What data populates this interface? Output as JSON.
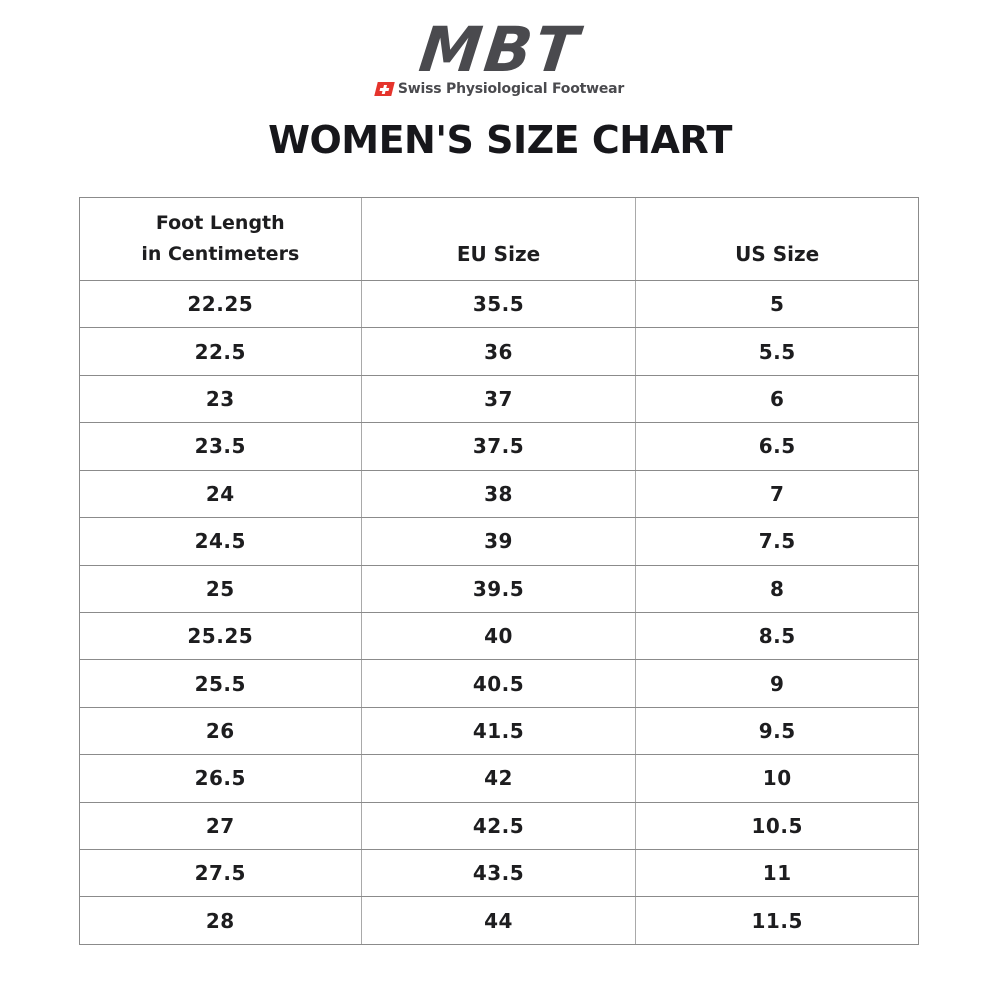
{
  "logo": {
    "brand": "MBT",
    "tagline": "Swiss Physiological Footwear",
    "brand_color": "#4a4a4e",
    "flag_color": "#e5342c"
  },
  "title": "WOMEN'S SIZE CHART",
  "table": {
    "border_color": "#8b8b8b",
    "header": {
      "foot_length_line1": "Foot Length",
      "foot_length_line2": "in Centimeters",
      "eu_size": "EU Size",
      "us_size": "US Size"
    },
    "rows": [
      [
        "22.25",
        "35.5",
        "5"
      ],
      [
        "22.5",
        "36",
        "5.5"
      ],
      [
        "23",
        "37",
        "6"
      ],
      [
        "23.5",
        "37.5",
        "6.5"
      ],
      [
        "24",
        "38",
        "7"
      ],
      [
        "24.5",
        "39",
        "7.5"
      ],
      [
        "25",
        "39.5",
        "8"
      ],
      [
        "25.25",
        "40",
        "8.5"
      ],
      [
        "25.5",
        "40.5",
        "9"
      ],
      [
        "26",
        "41.5",
        "9.5"
      ],
      [
        "26.5",
        "42",
        "10"
      ],
      [
        "27",
        "42.5",
        "10.5"
      ],
      [
        "27.5",
        "43.5",
        "11"
      ],
      [
        "28",
        "44",
        "11.5"
      ]
    ]
  },
  "chart_data": {
    "type": "table",
    "title": "WOMEN'S SIZE CHART",
    "columns": [
      "Foot Length in Centimeters",
      "EU Size",
      "US Size"
    ],
    "rows": [
      [
        22.25,
        35.5,
        5
      ],
      [
        22.5,
        36,
        5.5
      ],
      [
        23,
        37,
        6
      ],
      [
        23.5,
        37.5,
        6.5
      ],
      [
        24,
        38,
        7
      ],
      [
        24.5,
        39,
        7.5
      ],
      [
        25,
        39.5,
        8
      ],
      [
        25.25,
        40,
        8.5
      ],
      [
        25.5,
        40.5,
        9
      ],
      [
        26,
        41.5,
        9.5
      ],
      [
        26.5,
        42,
        10
      ],
      [
        27,
        42.5,
        10.5
      ],
      [
        27.5,
        43.5,
        11
      ],
      [
        28,
        44,
        11.5
      ]
    ]
  }
}
